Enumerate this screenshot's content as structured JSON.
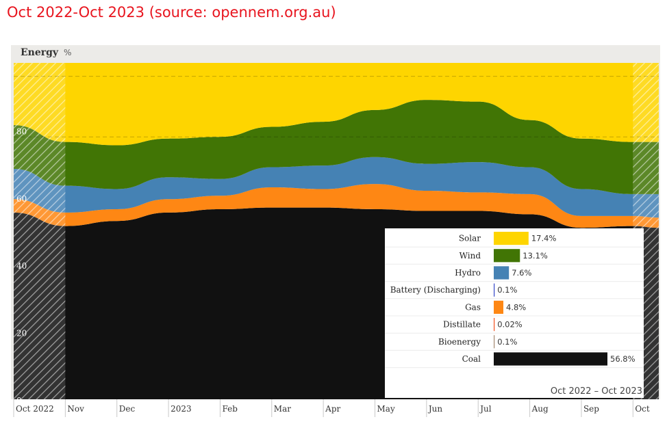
{
  "caption": "Oct 2022-Oct 2023 (source: opennem.org.au)",
  "chart_data": {
    "type": "area",
    "stacked": true,
    "title": "Energy",
    "ylabel": "%",
    "ylim": [
      0,
      100
    ],
    "yticks": [
      0,
      20,
      40,
      60,
      80
    ],
    "xlim": [
      0,
      12.5
    ],
    "categories": [
      "Oct 2022",
      "Nov",
      "Dec",
      "2023",
      "Feb",
      "Mar",
      "Apr",
      "May",
      "Jun",
      "Jul",
      "Aug",
      "Sep",
      "Oct"
    ],
    "x": [
      0,
      1,
      2,
      3,
      4,
      5,
      6,
      7,
      8,
      9,
      10,
      11,
      12,
      12.5
    ],
    "series": [
      {
        "name": "Coal",
        "color": "#111111",
        "values": [
          55.5,
          51.5,
          53,
          55.5,
          56.5,
          57,
          57,
          56.5,
          56,
          56,
          55,
          51,
          51.5,
          51
        ]
      },
      {
        "name": "Gas",
        "color": "#fe8714",
        "values": [
          4,
          4,
          3.5,
          4,
          4,
          6,
          5.5,
          7.5,
          6,
          5.5,
          6,
          3.5,
          3,
          3
        ]
      },
      {
        "name": "Hydro",
        "color": "#4582b4",
        "values": [
          9,
          8,
          6,
          6.5,
          5,
          6,
          7,
          8,
          8,
          9,
          8,
          8,
          6.5,
          7
        ]
      },
      {
        "name": "Wind",
        "color": "#417505",
        "values": [
          13,
          13,
          13,
          11.5,
          12.5,
          12,
          13,
          14,
          19,
          18,
          14,
          15,
          15.5,
          15.5
        ]
      },
      {
        "name": "Solar",
        "color": "#fed500",
        "values": [
          18.5,
          23.5,
          24.5,
          22.5,
          22,
          19,
          17.5,
          14,
          11,
          11.5,
          17,
          22.5,
          23.5,
          23.5
        ]
      }
    ],
    "legend": {
      "entries": [
        {
          "label": "Solar",
          "value": "17.4%",
          "pct": 17.4,
          "color": "#fed500"
        },
        {
          "label": "Wind",
          "value": "13.1%",
          "pct": 13.1,
          "color": "#417505"
        },
        {
          "label": "Hydro",
          "value": "7.6%",
          "pct": 7.6,
          "color": "#4582b4"
        },
        {
          "label": "Battery (Discharging)",
          "value": "0.1%",
          "pct": 0.1,
          "color": "#3245c8"
        },
        {
          "label": "Gas",
          "value": "4.8%",
          "pct": 4.8,
          "color": "#fe8714"
        },
        {
          "label": "Distillate",
          "value": "0.02%",
          "pct": 0.02,
          "color": "#f35020"
        },
        {
          "label": "Bioenergy",
          "value": "0.1%",
          "pct": 0.1,
          "color": "#a3886f"
        },
        {
          "label": "Coal",
          "value": "56.8%",
          "pct": 56.8,
          "color": "#111111"
        }
      ],
      "period": "Oct 2022 – Oct 2023",
      "placement": "bottom-right"
    },
    "shaded_ranges": [
      [
        0,
        1
      ],
      [
        12,
        12.5
      ]
    ],
    "reference_lines": [
      78,
      96
    ]
  }
}
